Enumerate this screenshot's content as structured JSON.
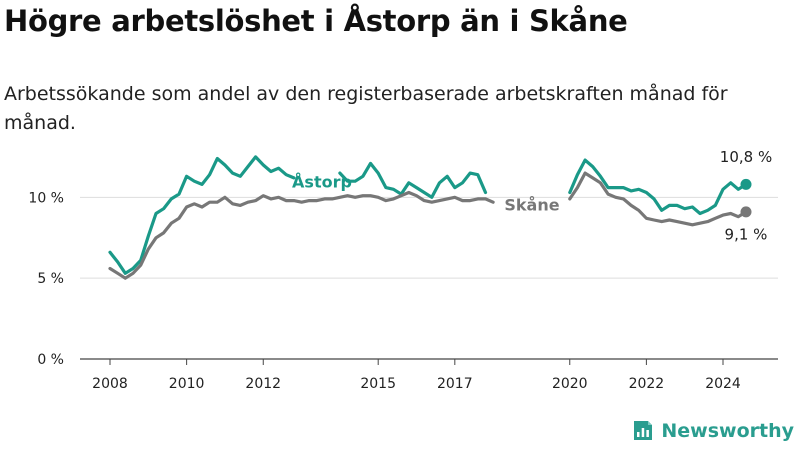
{
  "title": "Högre arbetslöshet i Åstorp än i Skåne",
  "subtitle": "Arbetssökande som andel av den registerbaserade arbetskraften månad för månad.",
  "logo": {
    "text": "Newsworthy",
    "icon": "newsworthy-logo-icon",
    "color": "#2a9d8f"
  },
  "chart_data": {
    "type": "line",
    "title": "Högre arbetslöshet i Åstorp än i Skåne",
    "subtitle": "Arbetssökande som andel av den registerbaserade arbetskraften månad för månad.",
    "xlabel": "",
    "ylabel": "",
    "xlim": [
      2008,
      2025.3
    ],
    "ylim": [
      0,
      12
    ],
    "y_ticks": [
      0,
      5,
      10
    ],
    "y_tick_labels": [
      "0 %",
      "5 %",
      "10 %"
    ],
    "x_ticks": [
      2008,
      2010,
      2012,
      2015,
      2017,
      2020,
      2022,
      2024
    ],
    "x_tick_labels": [
      "2008",
      "2010",
      "2012",
      "2015",
      "2017",
      "2020",
      "2022",
      "2024"
    ],
    "grid": true,
    "legend": "inline",
    "series": [
      {
        "name": "Åstorp",
        "color": "#1a9988",
        "end_label": "10,8 %",
        "end_value": 10.8,
        "x": [
          2008.0,
          2008.2,
          2008.4,
          2008.6,
          2008.8,
          2009.0,
          2009.2,
          2009.4,
          2009.6,
          2009.8,
          2010.0,
          2010.2,
          2010.4,
          2010.6,
          2010.8,
          2011.0,
          2011.2,
          2011.4,
          2011.6,
          2011.8,
          2012.0,
          2012.2,
          2012.4,
          2012.6,
          2012.8,
          2013.0,
          2013.2,
          2013.4,
          2013.6,
          2013.8,
          2014.0,
          2014.2,
          2014.4,
          2014.6,
          2014.8,
          2015.0,
          2015.2,
          2015.4,
          2015.6,
          2015.8,
          2016.0,
          2016.2,
          2016.4,
          2016.6,
          2016.8,
          2017.0,
          2017.2,
          2017.4,
          2017.6,
          2017.8,
          2018.0,
          2018.2,
          2018.4,
          2018.6,
          2018.8,
          2019.0,
          2019.2,
          2019.4,
          2019.6,
          2019.8,
          2020.0,
          2020.2,
          2020.4,
          2020.6,
          2020.8,
          2021.0,
          2021.2,
          2021.4,
          2021.6,
          2021.8,
          2022.0,
          2022.2,
          2022.4,
          2022.6,
          2022.8,
          2023.0,
          2023.2,
          2023.4,
          2023.6,
          2023.8,
          2024.0,
          2024.2,
          2024.4,
          2024.6
        ],
        "values": [
          6.6,
          6.0,
          5.3,
          5.6,
          6.1,
          7.6,
          9.0,
          9.3,
          9.9,
          10.2,
          11.3,
          11.0,
          10.8,
          11.4,
          12.4,
          12.0,
          11.5,
          11.3,
          11.9,
          12.5,
          12.0,
          11.6,
          11.8,
          11.4,
          11.2,
          null,
          null,
          null,
          null,
          null,
          11.5,
          11.0,
          11.0,
          11.3,
          12.1,
          11.5,
          10.6,
          10.5,
          10.2,
          10.9,
          10.6,
          10.3,
          10.0,
          10.9,
          11.3,
          10.6,
          10.9,
          11.5,
          11.4,
          10.3,
          null,
          null,
          null,
          null,
          null,
          null,
          null,
          null,
          null,
          null,
          10.3,
          11.4,
          12.3,
          11.9,
          11.3,
          10.6,
          10.6,
          10.6,
          10.4,
          10.5,
          10.3,
          9.9,
          9.2,
          9.5,
          9.5,
          9.3,
          9.4,
          9.0,
          9.2,
          9.5,
          10.5,
          10.9,
          10.5,
          10.8
        ]
      },
      {
        "name": "Skåne",
        "color": "#777777",
        "end_label": "9,1 %",
        "end_value": 9.1,
        "x": [
          2008.0,
          2008.2,
          2008.4,
          2008.6,
          2008.8,
          2009.0,
          2009.2,
          2009.4,
          2009.6,
          2009.8,
          2010.0,
          2010.2,
          2010.4,
          2010.6,
          2010.8,
          2011.0,
          2011.2,
          2011.4,
          2011.6,
          2011.8,
          2012.0,
          2012.2,
          2012.4,
          2012.6,
          2012.8,
          2013.0,
          2013.2,
          2013.4,
          2013.6,
          2013.8,
          2014.0,
          2014.2,
          2014.4,
          2014.6,
          2014.8,
          2015.0,
          2015.2,
          2015.4,
          2015.6,
          2015.8,
          2016.0,
          2016.2,
          2016.4,
          2016.6,
          2016.8,
          2017.0,
          2017.2,
          2017.4,
          2017.6,
          2017.8,
          2018.0,
          2018.2,
          2018.4,
          2018.6,
          2018.8,
          2019.0,
          2019.2,
          2019.4,
          2019.6,
          2019.8,
          2020.0,
          2020.2,
          2020.4,
          2020.6,
          2020.8,
          2021.0,
          2021.2,
          2021.4,
          2021.6,
          2021.8,
          2022.0,
          2022.2,
          2022.4,
          2022.6,
          2022.8,
          2023.0,
          2023.2,
          2023.4,
          2023.6,
          2023.8,
          2024.0,
          2024.2,
          2024.4,
          2024.6
        ],
        "values": [
          5.6,
          5.3,
          5.0,
          5.3,
          5.8,
          6.8,
          7.5,
          7.8,
          8.4,
          8.7,
          9.4,
          9.6,
          9.4,
          9.7,
          9.7,
          10.0,
          9.6,
          9.5,
          9.7,
          9.8,
          10.1,
          9.9,
          10.0,
          9.8,
          9.8,
          9.7,
          9.8,
          9.8,
          9.9,
          9.9,
          10.0,
          10.1,
          10.0,
          10.1,
          10.1,
          10.0,
          9.8,
          9.9,
          10.1,
          10.3,
          10.1,
          9.8,
          9.7,
          9.8,
          9.9,
          10.0,
          9.8,
          9.8,
          9.9,
          9.9,
          9.7,
          null,
          null,
          null,
          null,
          null,
          null,
          null,
          null,
          null,
          9.9,
          10.6,
          11.5,
          11.2,
          10.9,
          10.2,
          10.0,
          9.9,
          9.5,
          9.2,
          8.7,
          8.6,
          8.5,
          8.6,
          8.5,
          8.4,
          8.3,
          8.4,
          8.5,
          8.7,
          8.9,
          9.0,
          8.8,
          9.1
        ]
      }
    ]
  }
}
